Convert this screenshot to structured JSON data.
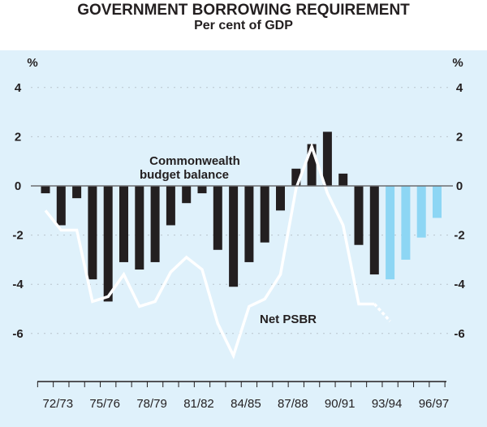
{
  "chart_data": {
    "type": "bar",
    "title": "GOVERNMENT BORROWING REQUIREMENT",
    "subtitle": "Per cent of GDP",
    "ylabel_left": "%",
    "ylabel_right": "%",
    "ylim": [
      -8,
      5
    ],
    "yticks": [
      4,
      2,
      0,
      -2,
      -4,
      -6
    ],
    "categories": [
      "71/72",
      "72/73",
      "73/74",
      "74/75",
      "75/76",
      "76/77",
      "77/78",
      "78/79",
      "79/80",
      "80/81",
      "81/82",
      "82/83",
      "83/84",
      "84/85",
      "85/86",
      "86/87",
      "87/88",
      "88/89",
      "89/90",
      "90/91",
      "91/92",
      "92/93",
      "93/94",
      "94/95",
      "95/96",
      "96/97"
    ],
    "xtick_labels": [
      "72/73",
      "75/76",
      "78/79",
      "81/82",
      "84/85",
      "87/88",
      "90/91",
      "93/94",
      "96/97"
    ],
    "series": [
      {
        "name": "Commonwealth budget balance",
        "label_line1": "Commonwealth",
        "label_line2": "budget balance",
        "type": "bar",
        "color": "#231f20",
        "forecast_color": "#8dd6f4",
        "forecast_from": "93/94",
        "values": [
          -0.3,
          -1.6,
          -0.5,
          -3.8,
          -4.7,
          -3.1,
          -3.4,
          -3.1,
          -1.6,
          -0.7,
          -0.3,
          -2.6,
          -4.1,
          -3.1,
          -2.3,
          -1.0,
          0.7,
          1.7,
          2.2,
          0.5,
          -2.4,
          -3.6,
          -3.8,
          -3.0,
          -2.1,
          -1.3
        ]
      },
      {
        "name": "Net PSBR",
        "type": "line",
        "color": "#ffffff",
        "dotted_from": "92/93",
        "values": [
          -1.0,
          -1.8,
          -1.8,
          -4.7,
          -4.5,
          -3.6,
          -4.9,
          -4.7,
          -3.5,
          -2.9,
          -3.4,
          -5.6,
          -6.9,
          -4.9,
          -4.6,
          -3.6,
          -0.1,
          1.6,
          -0.3,
          -1.6,
          -4.8,
          -4.8,
          -5.5,
          null,
          null,
          null
        ]
      }
    ],
    "grid": "dotted horizontal"
  }
}
